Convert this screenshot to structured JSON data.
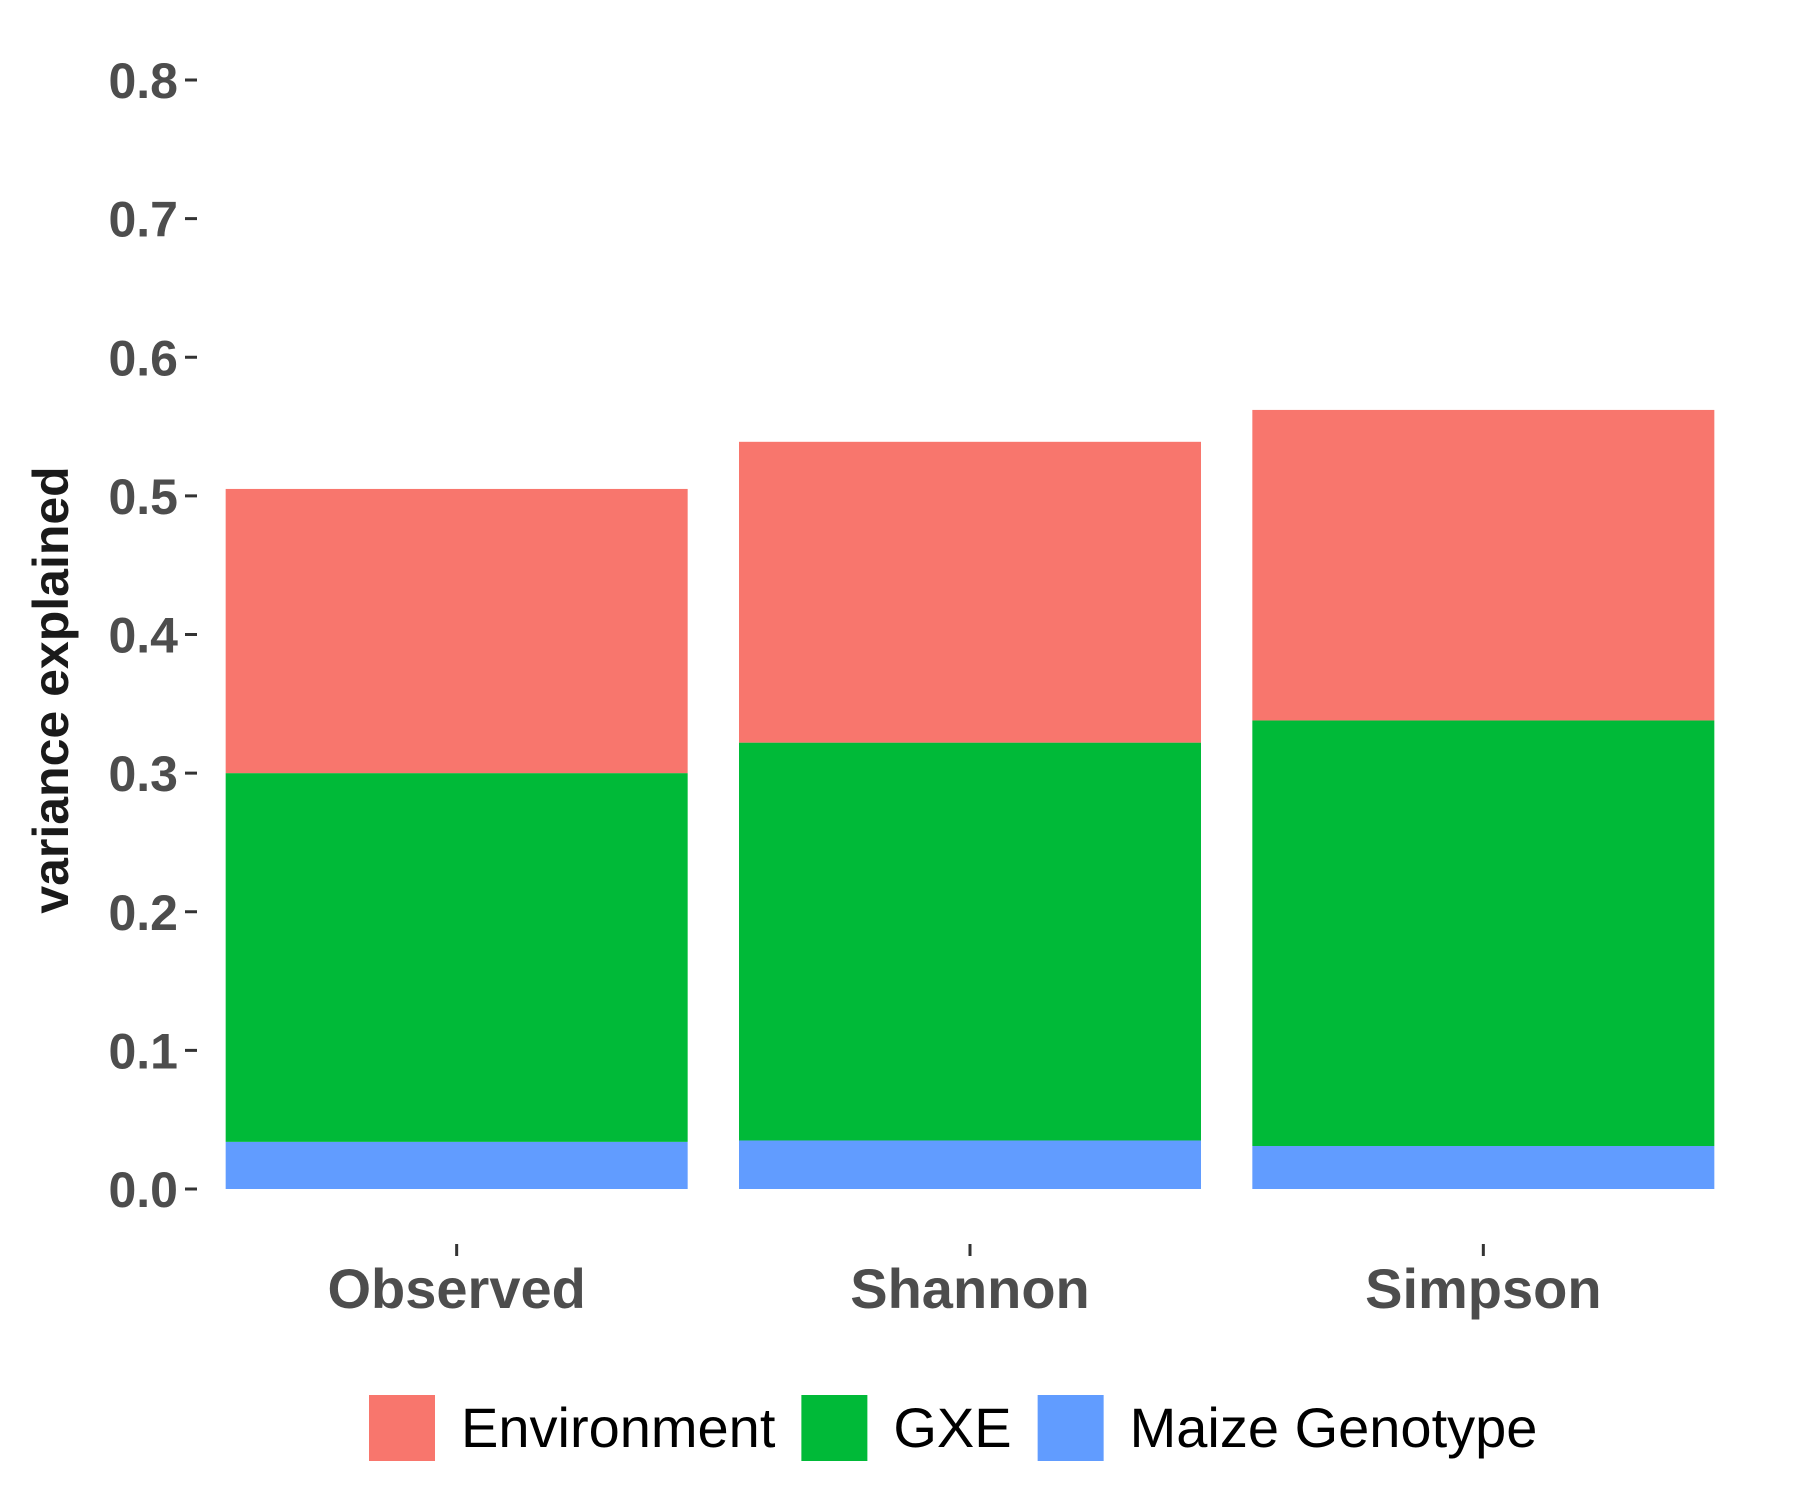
{
  "chart_data": {
    "type": "bar",
    "stacked": true,
    "categories": [
      "Observed",
      "Shannon",
      "Simpson"
    ],
    "series": [
      {
        "name": "Maize Genotype",
        "color": "#619CFF",
        "values": [
          0.034,
          0.035,
          0.031
        ]
      },
      {
        "name": "GXE",
        "color": "#00BA38",
        "values": [
          0.266,
          0.287,
          0.307
        ]
      },
      {
        "name": "Environment",
        "color": "#F8766D",
        "values": [
          0.205,
          0.217,
          0.224
        ]
      }
    ],
    "legend_order": [
      "Environment",
      "GXE",
      "Maize Genotype"
    ],
    "title": "",
    "xlabel": "",
    "ylabel": "variance explained",
    "ylim": [
      0,
      0.8
    ],
    "yticks": [
      "0.0",
      "0.1",
      "0.2",
      "0.3",
      "0.4",
      "0.5",
      "0.6",
      "0.7",
      "0.8"
    ],
    "grid": false,
    "legend_position": "bottom"
  }
}
